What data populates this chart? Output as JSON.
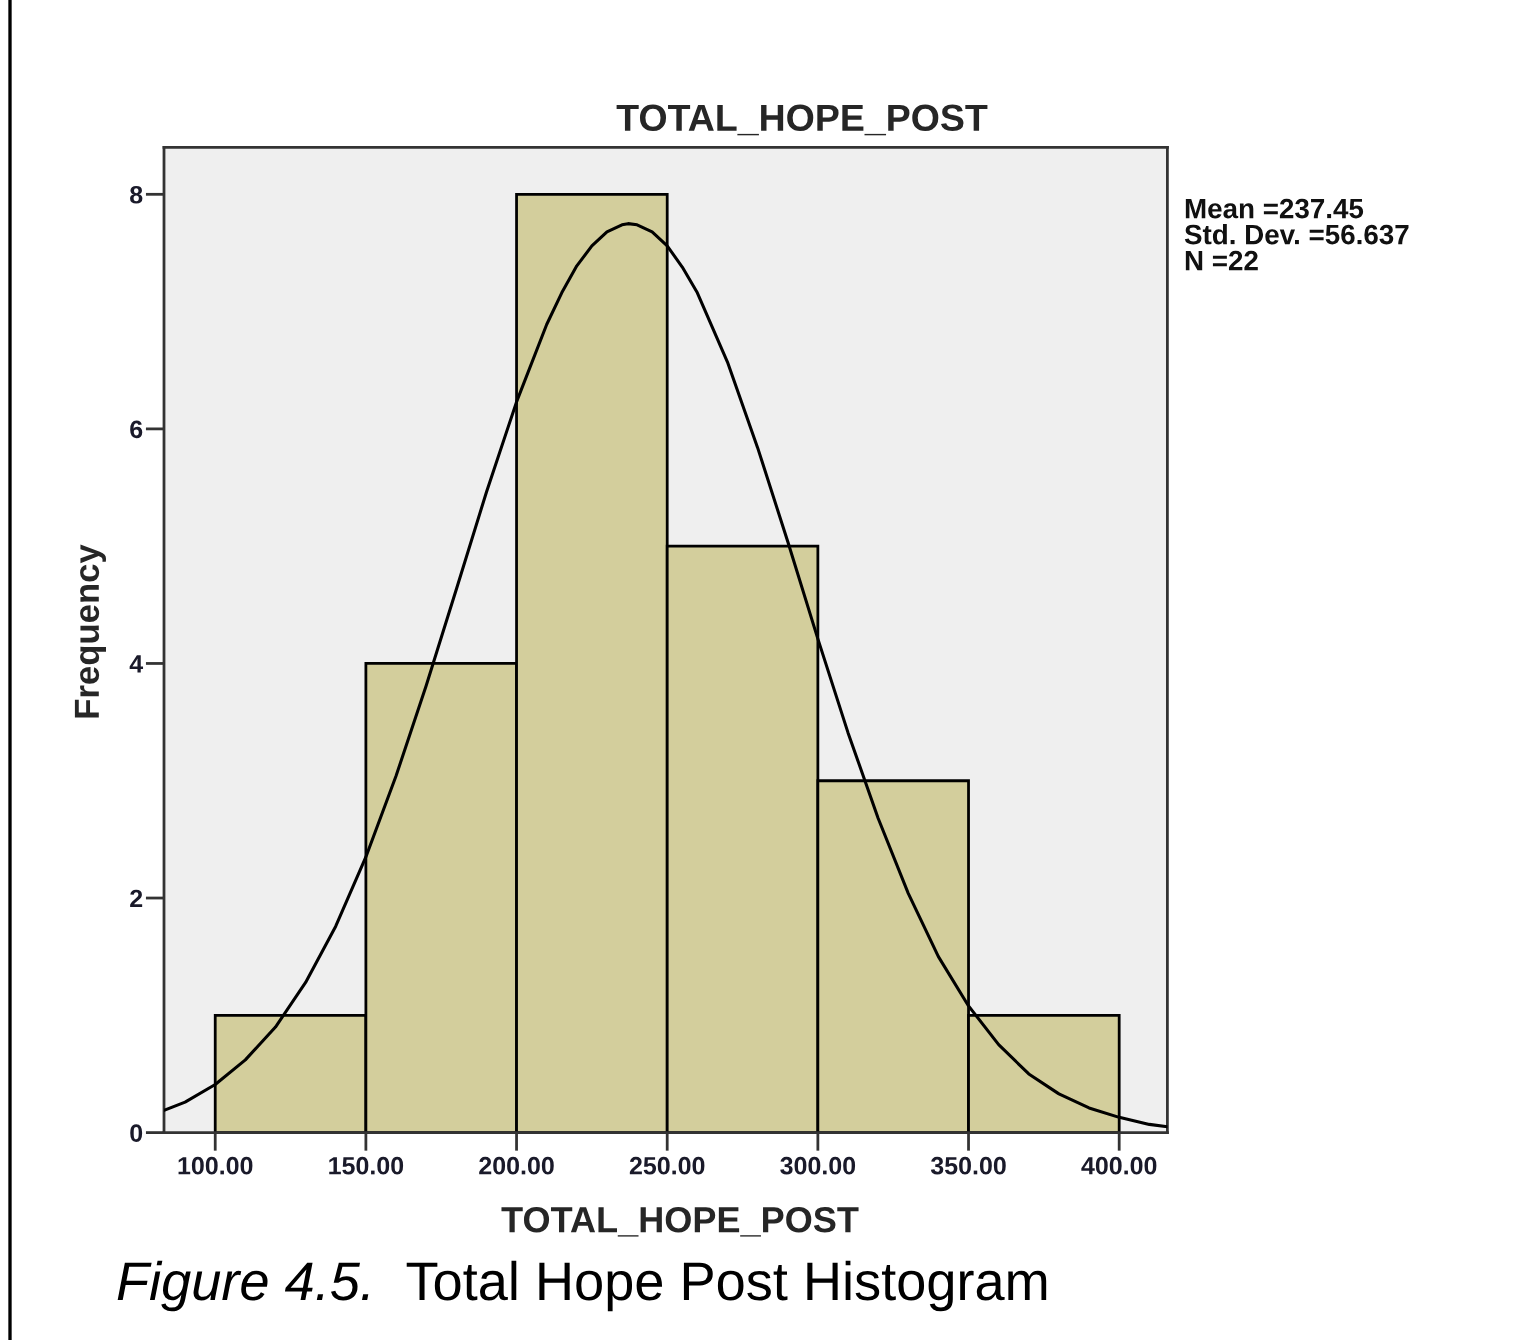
{
  "chart_data": {
    "type": "histogram",
    "title": "TOTAL_HOPE_POST",
    "xlabel": "TOTAL_HOPE_POST",
    "ylabel": "Frequency",
    "series": [
      {
        "bins": [
          100,
          150,
          200,
          250,
          300,
          350,
          400
        ],
        "values": [
          1,
          4,
          8,
          5,
          3,
          1
        ],
        "color": "#d3ce9c"
      },
      {
        "type": "line",
        "color": "#000000",
        "x": [
          83,
          90,
          100,
          110,
          120,
          130,
          140,
          150,
          160,
          170,
          180,
          190,
          200,
          210,
          215,
          220,
          225,
          230,
          235,
          237,
          240,
          245,
          250,
          255,
          260,
          270,
          280,
          290,
          300,
          310,
          320,
          330,
          340,
          350,
          360,
          370,
          380,
          390,
          400,
          410,
          416
        ],
        "values": [
          0.19,
          0.26,
          0.41,
          0.62,
          0.9,
          1.28,
          1.76,
          2.35,
          3.04,
          3.81,
          4.63,
          5.46,
          6.23,
          6.89,
          7.16,
          7.39,
          7.56,
          7.68,
          7.74,
          7.75,
          7.74,
          7.68,
          7.56,
          7.38,
          7.16,
          6.57,
          5.84,
          5.04,
          4.21,
          3.41,
          2.68,
          2.04,
          1.5,
          1.08,
          0.75,
          0.5,
          0.33,
          0.21,
          0.13,
          0.07,
          0.05
        ]
      }
    ],
    "xlim": [
      83,
      416
    ],
    "ylim": [
      0,
      8.4
    ],
    "xticks": [
      {
        "value": 100,
        "label": "100.00"
      },
      {
        "value": 150,
        "label": "150.00"
      },
      {
        "value": 200,
        "label": "200.00"
      },
      {
        "value": 250,
        "label": "250.00"
      },
      {
        "value": 300,
        "label": "300.00"
      },
      {
        "value": 350,
        "label": "350.00"
      },
      {
        "value": 400,
        "label": "400.00"
      }
    ],
    "yticks": [
      0,
      2,
      4,
      6,
      8
    ],
    "annotations": [
      "Mean =237.45",
      "Std. Dev. =56.637",
      "N =22",
      "Figure 4.5.",
      "Total Hope Post Histogram"
    ]
  }
}
